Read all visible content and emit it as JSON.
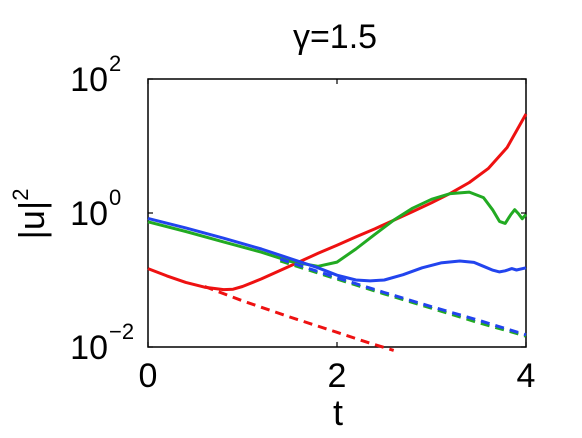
{
  "chart_data": {
    "type": "line",
    "title": "γ=1.5",
    "xlabel": "t",
    "ylabel": "|u|",
    "ylabel_sup": "2",
    "xlim": [
      0,
      4
    ],
    "ylim": [
      0.01,
      100
    ],
    "yscale": "log",
    "grid": false,
    "x_ticks": [
      {
        "value": 0,
        "label": "0"
      },
      {
        "value": 2,
        "label": "2"
      },
      {
        "value": 4,
        "label": "4"
      }
    ],
    "y_ticks": [
      {
        "value": 0.01,
        "base": "10",
        "exp": "−2"
      },
      {
        "value": 1,
        "base": "10",
        "exp": "0"
      },
      {
        "value": 100,
        "base": "10",
        "exp": "2"
      }
    ],
    "series": [
      {
        "color": "#ee1111",
        "dash": false,
        "points": [
          [
            0,
            0.148
          ],
          [
            0.2,
            0.115
          ],
          [
            0.4,
            0.092
          ],
          [
            0.6,
            0.078
          ],
          [
            0.8,
            0.072
          ],
          [
            0.9,
            0.073
          ],
          [
            1.0,
            0.08
          ],
          [
            1.2,
            0.104
          ],
          [
            1.4,
            0.139
          ],
          [
            1.6,
            0.186
          ],
          [
            1.8,
            0.25
          ],
          [
            2.0,
            0.33
          ],
          [
            2.2,
            0.44
          ],
          [
            2.4,
            0.58
          ],
          [
            2.6,
            0.78
          ],
          [
            2.8,
            1.05
          ],
          [
            3.0,
            1.42
          ],
          [
            3.2,
            1.97
          ],
          [
            3.4,
            2.85
          ],
          [
            3.6,
            4.6
          ],
          [
            3.8,
            9.5
          ],
          [
            4.0,
            30
          ]
        ]
      },
      {
        "color": "#ee1111",
        "dash": true,
        "points": [
          [
            0.6,
            0.08
          ],
          [
            1.0,
            0.049
          ],
          [
            1.5,
            0.028
          ],
          [
            2.0,
            0.0166
          ],
          [
            2.3,
            0.012
          ],
          [
            2.6,
            0.0089
          ]
        ]
      },
      {
        "color": "#22aa22",
        "dash": false,
        "points": [
          [
            0,
            0.74
          ],
          [
            0.4,
            0.53
          ],
          [
            0.8,
            0.37
          ],
          [
            1.2,
            0.26
          ],
          [
            1.5,
            0.19
          ],
          [
            1.8,
            0.16
          ],
          [
            2.0,
            0.185
          ],
          [
            2.2,
            0.29
          ],
          [
            2.4,
            0.48
          ],
          [
            2.6,
            0.78
          ],
          [
            2.8,
            1.18
          ],
          [
            3.0,
            1.6
          ],
          [
            3.2,
            1.95
          ],
          [
            3.4,
            2.05
          ],
          [
            3.55,
            1.7
          ],
          [
            3.65,
            1.1
          ],
          [
            3.72,
            0.75
          ],
          [
            3.78,
            0.7
          ],
          [
            3.84,
            0.95
          ],
          [
            3.88,
            1.12
          ],
          [
            3.92,
            0.98
          ],
          [
            3.96,
            0.82
          ],
          [
            4.0,
            0.95
          ]
        ]
      },
      {
        "color": "#22aa22",
        "dash": true,
        "points": [
          [
            1.4,
            0.192
          ],
          [
            2.0,
            0.103
          ],
          [
            2.5,
            0.062
          ],
          [
            3.0,
            0.038
          ],
          [
            3.5,
            0.023
          ],
          [
            3.8,
            0.0175
          ],
          [
            4.0,
            0.0145
          ]
        ]
      },
      {
        "color": "#2244ee",
        "dash": false,
        "points": [
          [
            0,
            0.83
          ],
          [
            0.4,
            0.6
          ],
          [
            0.8,
            0.42
          ],
          [
            1.2,
            0.29
          ],
          [
            1.5,
            0.21
          ],
          [
            1.8,
            0.152
          ],
          [
            2.0,
            0.118
          ],
          [
            2.2,
            0.1
          ],
          [
            2.35,
            0.097
          ],
          [
            2.5,
            0.1
          ],
          [
            2.7,
            0.12
          ],
          [
            2.9,
            0.152
          ],
          [
            3.1,
            0.18
          ],
          [
            3.3,
            0.192
          ],
          [
            3.45,
            0.183
          ],
          [
            3.55,
            0.16
          ],
          [
            3.65,
            0.14
          ],
          [
            3.72,
            0.132
          ],
          [
            3.78,
            0.137
          ],
          [
            3.85,
            0.148
          ],
          [
            3.9,
            0.141
          ],
          [
            4.0,
            0.152
          ]
        ]
      },
      {
        "color": "#2244ee",
        "dash": true,
        "points": [
          [
            1.4,
            0.205
          ],
          [
            2.0,
            0.108
          ],
          [
            2.5,
            0.065
          ],
          [
            3.0,
            0.04
          ],
          [
            3.5,
            0.025
          ],
          [
            3.8,
            0.0185
          ],
          [
            4.0,
            0.0152
          ]
        ]
      }
    ]
  }
}
